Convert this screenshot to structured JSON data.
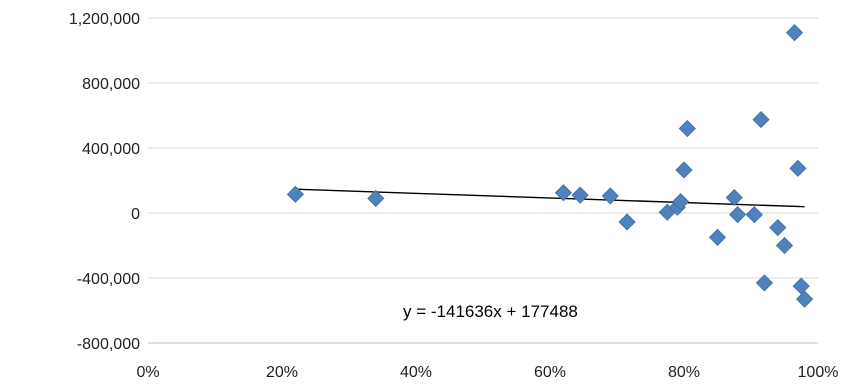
{
  "chart_data": {
    "type": "scatter",
    "title": "",
    "xlabel": "",
    "ylabel": "",
    "xlim": [
      0,
      1
    ],
    "ylim": [
      -800000,
      1200000
    ],
    "grid": true,
    "legend": "none",
    "x_tick_values": [
      0,
      0.2,
      0.4,
      0.6,
      0.8,
      1.0
    ],
    "x_tick_labels": [
      "0%",
      "20%",
      "40%",
      "60%",
      "80%",
      "100%"
    ],
    "y_tick_values": [
      1200000,
      800000,
      400000,
      0,
      -400000,
      -800000
    ],
    "y_tick_labels": [
      "1,200,000",
      "800,000",
      "400,000",
      "0",
      "-400,000",
      "-800,000"
    ],
    "marker_color": "#4f81bd",
    "series": [
      {
        "points": [
          [
            0.22,
            115000
          ],
          [
            0.34,
            90000
          ],
          [
            0.62,
            125000
          ],
          [
            0.645,
            110000
          ],
          [
            0.69,
            105000
          ],
          [
            0.715,
            -55000
          ],
          [
            0.775,
            5000
          ],
          [
            0.79,
            35000
          ],
          [
            0.795,
            70000
          ],
          [
            0.8,
            265000
          ],
          [
            0.805,
            520000
          ],
          [
            0.85,
            -150000
          ],
          [
            0.875,
            95000
          ],
          [
            0.88,
            -10000
          ],
          [
            0.905,
            -10000
          ],
          [
            0.915,
            575000
          ],
          [
            0.92,
            -430000
          ],
          [
            0.94,
            -90000
          ],
          [
            0.95,
            -200000
          ],
          [
            0.965,
            1110000
          ],
          [
            0.97,
            275000
          ],
          [
            0.975,
            -450000
          ],
          [
            0.98,
            -530000
          ]
        ]
      }
    ],
    "trendline": {
      "slope": -141636,
      "intercept": 177488,
      "x_range": [
        0.22,
        0.98
      ],
      "equation": "y = -141636x + 177488"
    }
  }
}
